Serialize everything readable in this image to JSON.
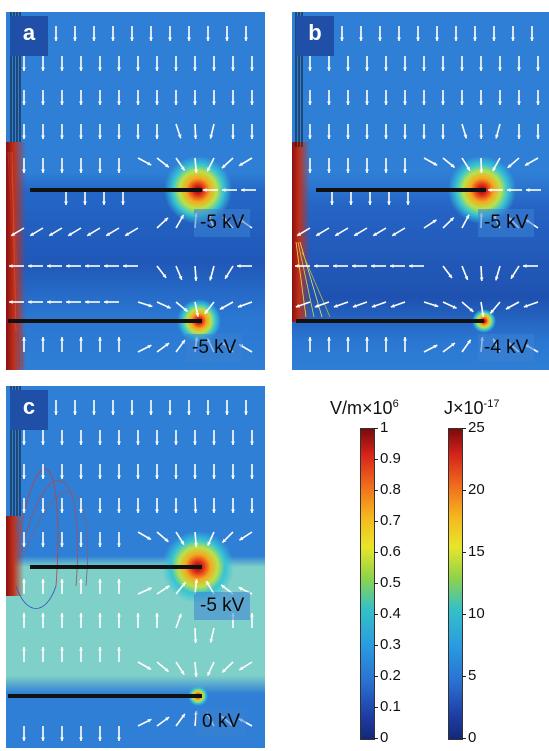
{
  "panels": [
    {
      "letter": "a",
      "top_voltage": "-5 kV",
      "bottom_voltage": "-5 kV"
    },
    {
      "letter": "b",
      "top_voltage": "-5 kV",
      "bottom_voltage": "-4 kV"
    },
    {
      "letter": "c",
      "top_voltage": "-5 kV",
      "bottom_voltage": "0 kV"
    }
  ],
  "colorbars": [
    {
      "unit_prefix": "V/m",
      "multiplier": "×10",
      "exponent": "6",
      "ticks": [
        "1",
        "0.9",
        "0.8",
        "0.7",
        "0.6",
        "0.5",
        "0.4",
        "0.3",
        "0.2",
        "0.1",
        "0"
      ]
    },
    {
      "unit_prefix": "J",
      "multiplier": "×10",
      "exponent": "-17",
      "ticks": [
        "25",
        "20",
        "15",
        "10",
        "5",
        "0"
      ]
    }
  ],
  "colors": {
    "field_low": "#1a3f9e",
    "field_mid": "#2f7fd6",
    "field_high": "#d42a1a",
    "arrow": "#ffffff",
    "electrode": "#111111"
  }
}
